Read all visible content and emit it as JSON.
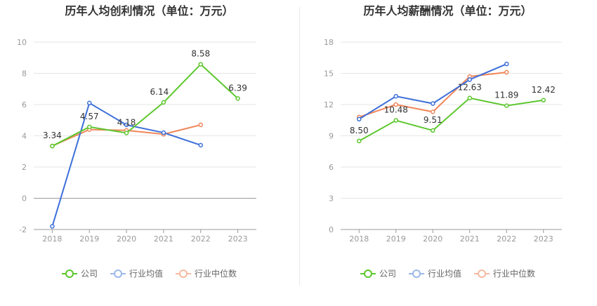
{
  "chart_data": [
    {
      "type": "line",
      "title": "历年人均创利情况（单位：万元）",
      "categories": [
        "2018",
        "2019",
        "2020",
        "2021",
        "2022",
        "2023"
      ],
      "yticks": [
        "-2",
        "0",
        "2",
        "4",
        "6",
        "8",
        "10"
      ],
      "ylim": [
        -2,
        10
      ],
      "grid": true,
      "legend_position": "bottom",
      "series": [
        {
          "name": "公司",
          "color": "#5cc72d",
          "values": [
            3.34,
            4.57,
            4.18,
            6.14,
            8.58,
            6.39
          ],
          "labels": [
            "3.34",
            "4.57",
            "4.18",
            "6.14",
            "8.58",
            "6.39"
          ]
        },
        {
          "name": "行业均值",
          "color": "#3d6fd9",
          "values": [
            -1.8,
            6.1,
            4.7,
            4.2,
            3.4,
            null
          ],
          "labels": []
        },
        {
          "name": "行业中位数",
          "color": "#f0865a",
          "values": [
            3.35,
            4.4,
            4.35,
            4.1,
            4.7,
            null
          ],
          "labels": []
        }
      ]
    },
    {
      "type": "line",
      "title": "历年人均薪酬情况（单位：万元）",
      "categories": [
        "2018",
        "2019",
        "2020",
        "2021",
        "2022",
        "2023"
      ],
      "yticks": [
        "0",
        "3",
        "6",
        "9",
        "12",
        "15",
        "18"
      ],
      "ylim": [
        0,
        18
      ],
      "grid": true,
      "legend_position": "bottom",
      "series": [
        {
          "name": "公司",
          "color": "#5cc72d",
          "values": [
            8.5,
            10.48,
            9.51,
            12.63,
            11.89,
            12.42
          ],
          "labels": [
            "8.50",
            "10.48",
            "9.51",
            "12.63",
            "11.89",
            "12.42"
          ]
        },
        {
          "name": "行业均值",
          "color": "#3d6fd9",
          "values": [
            10.6,
            12.8,
            12.1,
            14.4,
            15.9,
            null
          ],
          "labels": []
        },
        {
          "name": "行业中位数",
          "color": "#f0865a",
          "values": [
            10.8,
            12.0,
            11.3,
            14.7,
            15.1,
            null
          ],
          "labels": []
        }
      ]
    }
  ]
}
